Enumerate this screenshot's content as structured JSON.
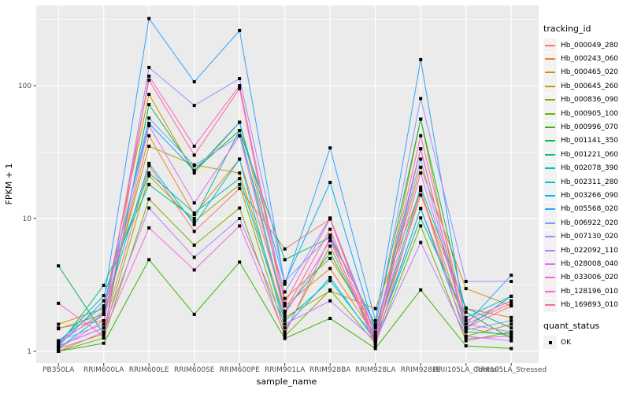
{
  "chart_data": {
    "type": "line",
    "title": "",
    "xlabel": "sample_name",
    "ylabel": "FPKM + 1",
    "y_scale": "log10",
    "y_ticks": [
      1,
      10,
      100
    ],
    "y_tick_labels": [
      "1",
      "10",
      "100"
    ],
    "y_minor_ticks": [
      3.162,
      31.62,
      316.2
    ],
    "ylim": [
      1,
      400
    ],
    "grid": "on",
    "legend_position": "right",
    "point_shape": "filled-black-square",
    "x_categories": [
      "PB350LA",
      "RRIM600LA",
      "RRIM600LE",
      "RRIM600SE",
      "RRIM600PE",
      "RRIM901LA",
      "RRIM928BA",
      "RRIM928LA",
      "RRIM928LE",
      "RRII105LA_Control",
      "RRII105LA_Stressed"
    ],
    "series": [
      {
        "name": "Hb_000049_280",
        "color": "#F8766D",
        "values": [
          1.1,
          1.5,
          25,
          8.0,
          16.8,
          5.9,
          9.9,
          1.2,
          11.9,
          1.6,
          2.3
        ]
      },
      {
        "name": "Hb_000243_060",
        "color": "#EA8331",
        "values": [
          1.5,
          1.7,
          42,
          10.7,
          28,
          2.2,
          4.2,
          1.3,
          15,
          2.1,
          1.8
        ]
      },
      {
        "name": "Hb_000465_020",
        "color": "#D89000",
        "values": [
          1.6,
          2.1,
          86,
          22,
          53,
          2.5,
          5.0,
          1.5,
          24.3,
          2.97,
          2.2
        ]
      },
      {
        "name": "Hb_000645_260",
        "color": "#C09B00",
        "values": [
          1.48,
          1.9,
          35,
          25.3,
          22,
          1.8,
          2.85,
          2.1,
          16.3,
          1.5,
          1.3
        ]
      },
      {
        "name": "Hb_000836_090",
        "color": "#A3A500",
        "values": [
          1.05,
          1.35,
          21,
          9.5,
          18,
          1.4,
          6.2,
          1.2,
          56,
          1.3,
          1.6
        ]
      },
      {
        "name": "Hb_000905_100",
        "color": "#7CAE00",
        "values": [
          1.0,
          1.26,
          14,
          6.3,
          12,
          1.3,
          2.9,
          1.15,
          8.8,
          1.2,
          1.4
        ]
      },
      {
        "name": "Hb_000996_070",
        "color": "#39B600",
        "values": [
          1.0,
          1.15,
          4.9,
          1.9,
          4.7,
          1.25,
          1.77,
          1.05,
          2.9,
          1.1,
          1.05
        ]
      },
      {
        "name": "Hb_001141_350",
        "color": "#00BB4E",
        "values": [
          4.4,
          1.35,
          72,
          23,
          46,
          4.9,
          7.2,
          1.6,
          56,
          1.97,
          1.25
        ]
      },
      {
        "name": "Hb_001221_060",
        "color": "#00C08B",
        "values": [
          1.1,
          3.14,
          18,
          10,
          46,
          2.0,
          5.5,
          1.3,
          17.2,
          2.12,
          1.5
        ]
      },
      {
        "name": "Hb_002078_390",
        "color": "#00C0AF",
        "values": [
          1.15,
          2.63,
          22,
          11,
          20,
          1.7,
          3.4,
          1.25,
          10.1,
          1.8,
          2.6
        ]
      },
      {
        "name": "Hb_002311_280",
        "color": "#00BCD8",
        "values": [
          1.05,
          1.9,
          26,
          9,
          28,
          1.5,
          3.6,
          1.2,
          11.9,
          1.4,
          1.35
        ]
      },
      {
        "name": "Hb_003266_090",
        "color": "#00B0F6",
        "values": [
          1.2,
          2.2,
          52,
          23,
          53,
          3.3,
          18.7,
          1.4,
          33.5,
          1.5,
          2.6
        ]
      },
      {
        "name": "Hb_005568_020",
        "color": "#35A2FF",
        "values": [
          1.1,
          2.4,
          320,
          107,
          260,
          3.2,
          34,
          1.7,
          157,
          1.6,
          3.74
        ]
      },
      {
        "name": "Hb_006922_020",
        "color": "#7C9DFF",
        "values": [
          1.15,
          2.0,
          57,
          25,
          42,
          2.8,
          10.1,
          1.35,
          28,
          1.45,
          1.7
        ]
      },
      {
        "name": "Hb_007130_020",
        "color": "#9590FF",
        "values": [
          1.2,
          1.6,
          137,
          71,
          113,
          3.36,
          7.5,
          1.55,
          80,
          3.36,
          3.36
        ]
      },
      {
        "name": "Hb_022092_110",
        "color": "#BC7EFF",
        "values": [
          1.1,
          1.5,
          12,
          5.1,
          10,
          1.6,
          2.4,
          1.2,
          6.6,
          1.3,
          1.2
        ]
      },
      {
        "name": "Hb_028008_040",
        "color": "#E36EF6",
        "values": [
          1.05,
          1.7,
          50,
          13.1,
          42,
          1.9,
          6.8,
          1.25,
          22,
          1.6,
          1.4
        ]
      },
      {
        "name": "Hb_033006_020",
        "color": "#F763E0",
        "values": [
          1.0,
          1.4,
          8.5,
          4.1,
          8.8,
          1.35,
          7.2,
          1.1,
          16.3,
          1.25,
          1.3
        ]
      },
      {
        "name": "Hb_128196_010",
        "color": "#FF61C7",
        "values": [
          2.3,
          1.3,
          118,
          35,
          100,
          2.3,
          10,
          1.3,
          42,
          1.7,
          2.4
        ]
      },
      {
        "name": "Hb_169893_010",
        "color": "#FF6690",
        "values": [
          1.2,
          1.9,
          110,
          30,
          95,
          2.0,
          8.3,
          1.15,
          33.5,
          1.5,
          2.2
        ]
      }
    ],
    "legend": {
      "tracking_title": "tracking_id",
      "quant_title": "quant_status",
      "quant_label": "OK"
    }
  },
  "colors": {
    "panel_background": "#EBEBEB",
    "gridline": "#FFFFFF",
    "legend_key_background": "#F2F2F2",
    "tick_text": "#4D4D4D",
    "marker": "#000000"
  }
}
